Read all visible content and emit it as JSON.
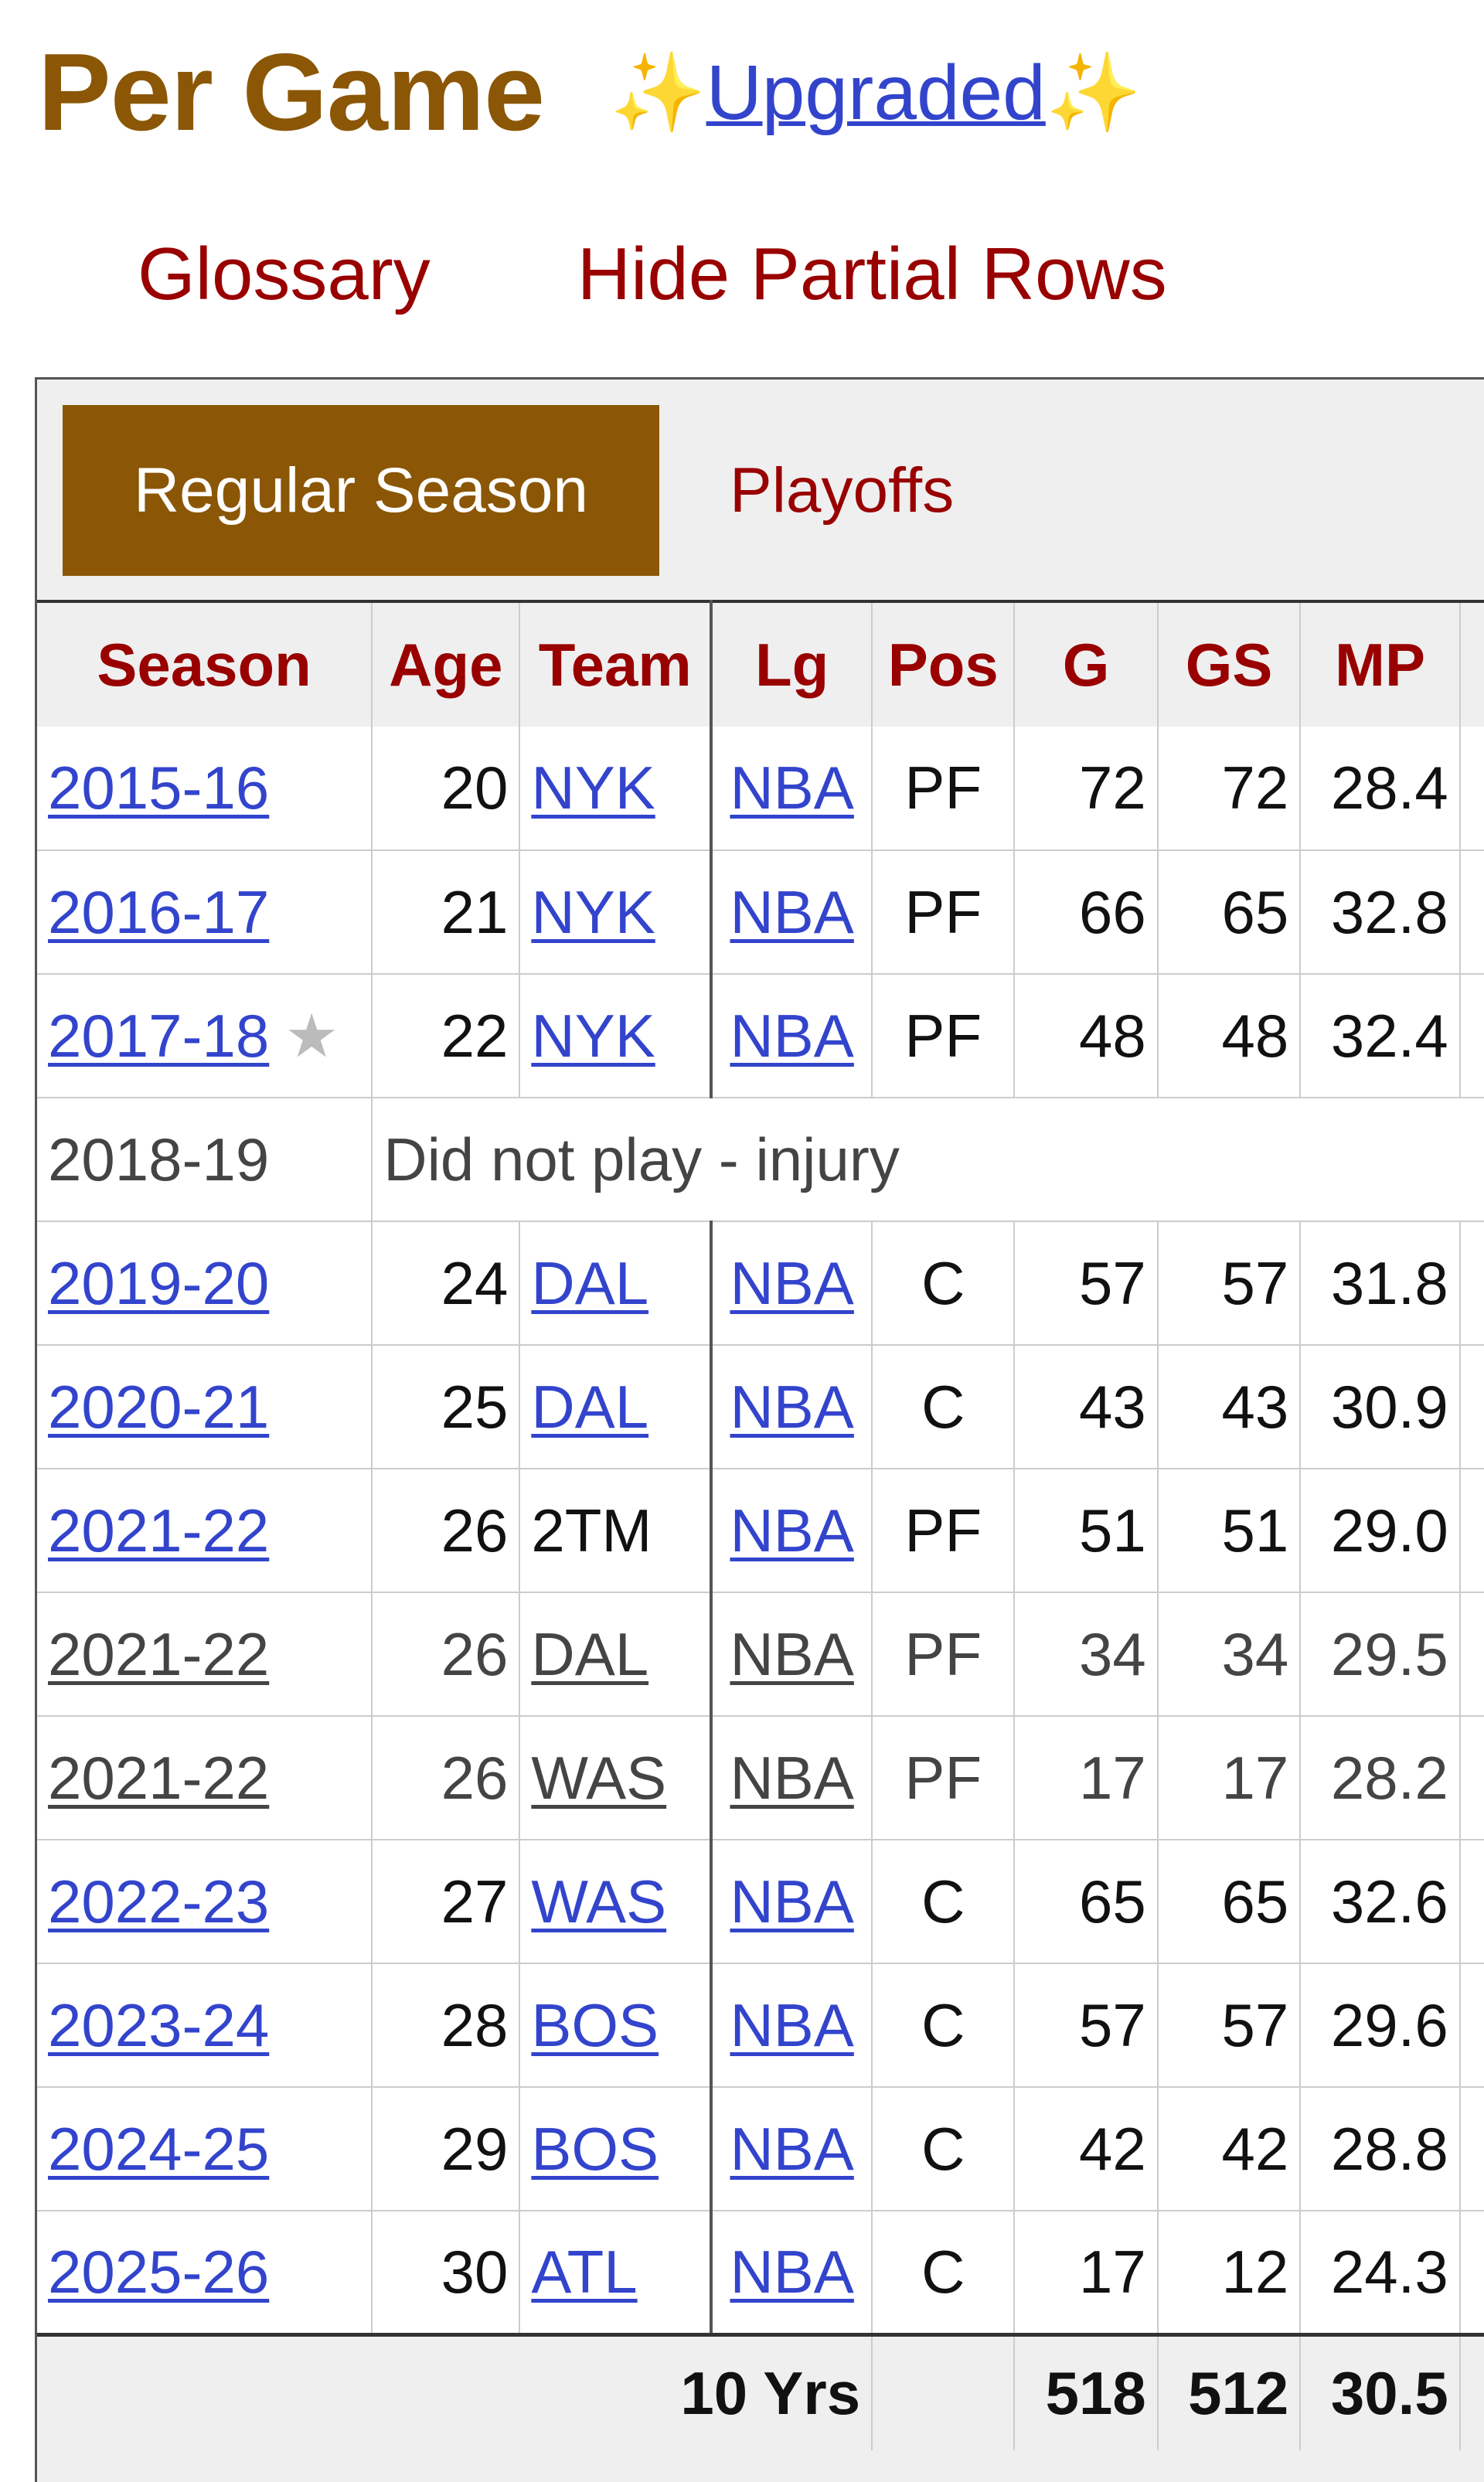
{
  "header": {
    "title": "Per Game",
    "upgraded_label": "Upgraded",
    "sparkle": "✨"
  },
  "links": {
    "glossary": "Glossary",
    "hide_partial": "Hide Partial Rows"
  },
  "tabs": {
    "regular": "Regular Season",
    "playoffs": "Playoffs"
  },
  "colors": {
    "brand": "#8b5706",
    "link": "#3344cc",
    "accent": "#990000"
  },
  "table": {
    "columns": [
      "Season",
      "Age",
      "Team",
      "Lg",
      "Pos",
      "G",
      "GS",
      "MP"
    ],
    "rows": [
      {
        "season": "2015-16",
        "age": "20",
        "team": "NYK",
        "lg": "NBA",
        "pos": "PF",
        "g": "72",
        "gs": "72",
        "mp": "28.4"
      },
      {
        "season": "2016-17",
        "age": "21",
        "team": "NYK",
        "lg": "NBA",
        "pos": "PF",
        "g": "66",
        "gs": "65",
        "mp": "32.8"
      },
      {
        "season": "2017-18",
        "star": "★",
        "age": "22",
        "team": "NYK",
        "lg": "NBA",
        "pos": "PF",
        "g": "48",
        "gs": "48",
        "mp": "32.4"
      },
      {
        "season": "2018-19",
        "note": "Did not play - injury"
      },
      {
        "season": "2019-20",
        "age": "24",
        "team": "DAL",
        "lg": "NBA",
        "pos": "C",
        "g": "57",
        "gs": "57",
        "mp": "31.8"
      },
      {
        "season": "2020-21",
        "age": "25",
        "team": "DAL",
        "lg": "NBA",
        "pos": "C",
        "g": "43",
        "gs": "43",
        "mp": "30.9"
      },
      {
        "season": "2021-22",
        "age": "26",
        "team": "2TM",
        "lg": "NBA",
        "pos": "PF",
        "g": "51",
        "gs": "51",
        "mp": "29.0",
        "team_plain": true
      },
      {
        "season": "2021-22",
        "age": "26",
        "team": "DAL",
        "lg": "NBA",
        "pos": "PF",
        "g": "34",
        "gs": "34",
        "mp": "29.5",
        "partial": true
      },
      {
        "season": "2021-22",
        "age": "26",
        "team": "WAS",
        "lg": "NBA",
        "pos": "PF",
        "g": "17",
        "gs": "17",
        "mp": "28.2",
        "partial": true
      },
      {
        "season": "2022-23",
        "age": "27",
        "team": "WAS",
        "lg": "NBA",
        "pos": "C",
        "g": "65",
        "gs": "65",
        "mp": "32.6"
      },
      {
        "season": "2023-24",
        "age": "28",
        "team": "BOS",
        "lg": "NBA",
        "pos": "C",
        "g": "57",
        "gs": "57",
        "mp": "29.6"
      },
      {
        "season": "2024-25",
        "age": "29",
        "team": "BOS",
        "lg": "NBA",
        "pos": "C",
        "g": "42",
        "gs": "42",
        "mp": "28.8"
      },
      {
        "season": "2025-26",
        "age": "30",
        "team": "ATL",
        "lg": "NBA",
        "pos": "C",
        "g": "17",
        "gs": "12",
        "mp": "24.3"
      }
    ],
    "footer": {
      "label": "10 Yrs",
      "g": "518",
      "gs": "512",
      "mp": "30.5"
    }
  }
}
